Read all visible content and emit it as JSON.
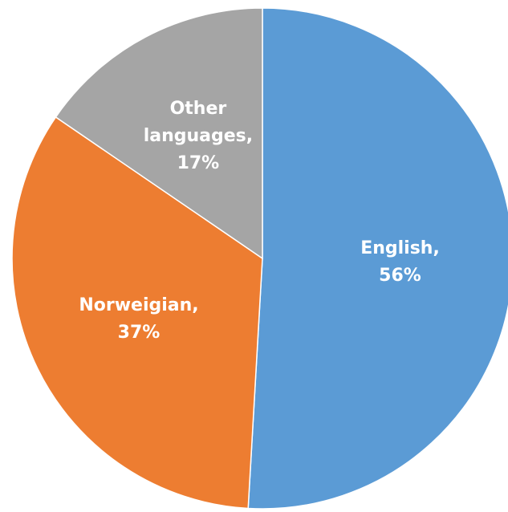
{
  "chart_data": {
    "type": "pie",
    "categories": [
      "English,",
      "Norweigian,",
      "Other languages,"
    ],
    "values": [
      56,
      37,
      17
    ],
    "value_labels": [
      "56%",
      "37%",
      "17%"
    ],
    "colors": [
      "#5b9bd5",
      "#ed7d31",
      "#a5a5a5"
    ],
    "start_angle": 0,
    "direction": "clockwise"
  }
}
